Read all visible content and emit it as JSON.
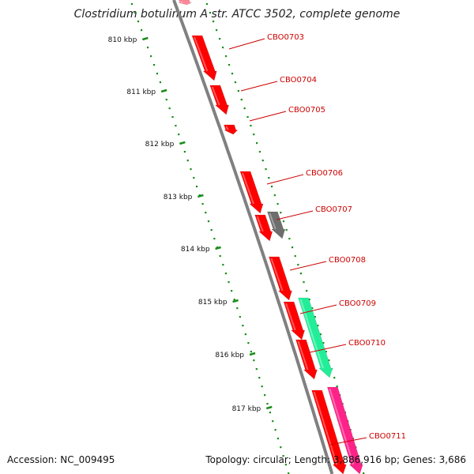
{
  "title": "Clostridium botulinum A str. ATCC 3502, complete genome",
  "footer": {
    "accession": "Accession: NC_009495",
    "summary": "Topology: circular; Length: 3,886,916 bp; Genes: 3,686"
  },
  "colors": {
    "backbone": "#808080",
    "gene_red": "#ff0000",
    "gene_gray": "#6e6e6e",
    "gene_green": "#22ee99",
    "gene_pink": "#ff2288",
    "tick_green": "#1a8c1a",
    "label_red": "#cc0000"
  },
  "scale_ticks": [
    "810 kbp",
    "811 kbp",
    "812 kbp",
    "813 kbp",
    "814 kbp",
    "815 kbp",
    "816 kbp",
    "817 kbp"
  ],
  "gene_labels": [
    "CBO0703",
    "CBO0704",
    "CBO0705",
    "CBO0706",
    "CBO0707",
    "CBO0708",
    "CBO0709",
    "CBO0710",
    "CBO0711"
  ]
}
